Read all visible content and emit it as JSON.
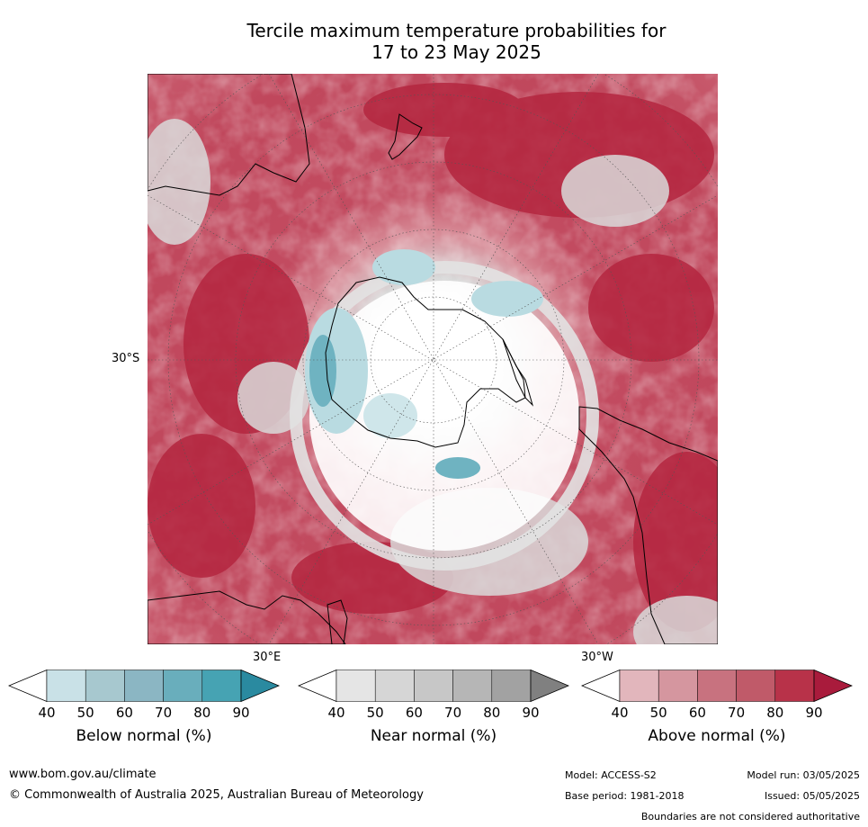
{
  "title_line1": "Tercile maximum temperature probabilities for",
  "title_line2": "17 to 23 May 2025",
  "map": {
    "lat_label": "30°S",
    "lon_label_east": "30°E",
    "lon_label_west": "30°W",
    "colors": {
      "above_strong": "#b82b48",
      "above_mid": "#c95a6b",
      "above_light": "#dc9aa3",
      "near": "#dcdcdc",
      "below_light": "#b9dbe1",
      "below_strong": "#6fb3c1",
      "land_line": "#000000"
    }
  },
  "legends": [
    {
      "label": "Below normal (%)",
      "ticks": [
        "40",
        "50",
        "60",
        "70",
        "80",
        "90"
      ],
      "colors": [
        "#ffffff",
        "#c9e1e7",
        "#a7c8cf",
        "#8bb6c3",
        "#69aebc",
        "#46a3b3",
        "#2a8aa0"
      ]
    },
    {
      "label": "Near normal (%)",
      "ticks": [
        "40",
        "50",
        "60",
        "70",
        "80",
        "90"
      ],
      "colors": [
        "#ffffff",
        "#e5e5e5",
        "#d6d6d6",
        "#c7c7c7",
        "#b6b6b6",
        "#a2a2a2",
        "#808080"
      ]
    },
    {
      "label": "Above normal (%)",
      "ticks": [
        "40",
        "50",
        "60",
        "70",
        "80",
        "90"
      ],
      "colors": [
        "#ffffff",
        "#e2b6bc",
        "#d5969f",
        "#c8727f",
        "#c05a69",
        "#b83249",
        "#a91b3c"
      ]
    }
  ],
  "footer": {
    "website": "www.bom.gov.au/climate",
    "copyright": "© Commonwealth of Australia 2025, Australian Bureau of Meteorology",
    "model": "Model: ACCESS-S2",
    "model_run": "Model run: 03/05/2025",
    "base_period": "Base period: 1981-2018",
    "issued": "Issued: 05/05/2025",
    "disclaimer": "Boundaries are not considered authoritative"
  }
}
